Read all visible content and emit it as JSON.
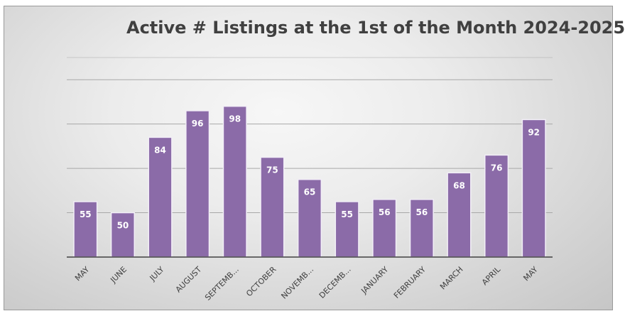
{
  "chart_data": {
    "type": "bar",
    "title": "Active # Listings at the 1st of the Month 2024-2025",
    "categories": [
      "MAY",
      "JUNE",
      "JULY",
      "AUGUST",
      "SEPTEMB...",
      "OCTOBER",
      "NOVEMB...",
      "DECEMB...",
      "JANUARY",
      "FEBRUARY",
      "MARCH",
      "APRIL",
      "MAY"
    ],
    "values": [
      55,
      50,
      84,
      96,
      98,
      75,
      65,
      55,
      56,
      56,
      68,
      76,
      92
    ],
    "data_labels": [
      "55",
      "50",
      "84",
      "96",
      "98",
      "75",
      "65",
      "55",
      "56",
      "56",
      "68",
      "76",
      "92"
    ],
    "ylim": [
      30,
      120
    ],
    "y_gridlines": [
      30,
      50,
      70,
      90,
      110,
      120
    ],
    "grid": true,
    "legend": "none",
    "bar_color": "#8b6ba8",
    "bar_edge_color": "#f2eef7",
    "grid_color": "#a8a8a8",
    "axis_color": "#404040"
  }
}
